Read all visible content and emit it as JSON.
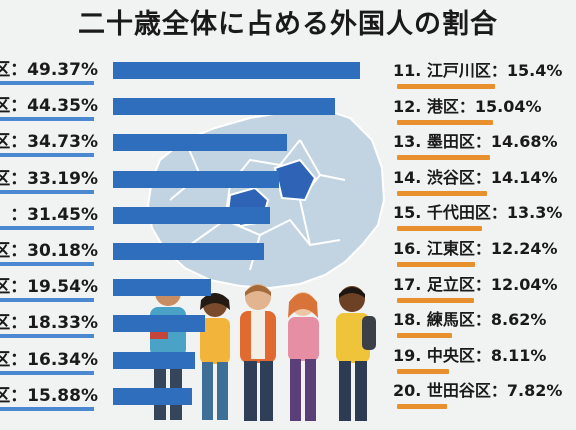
{
  "title": "二十歳全体に占める外国人の割合",
  "chart_data": {
    "type": "bar",
    "title": "二十歳全体に占める外国人の割合",
    "left_column": {
      "labels": [
        "区：49.37%",
        "区：44.35%",
        "区：34.73%",
        "区：33.19%",
        "：31.45%",
        "区：30.18%",
        "区：19.54%",
        "区：18.33%",
        "区：16.34%",
        "区：15.88%"
      ],
      "values": [
        49.37,
        44.35,
        34.73,
        33.19,
        31.45,
        30.18,
        19.54,
        18.33,
        16.34,
        15.88
      ]
    },
    "right_column": {
      "labels": [
        "11. 江戸川区：15.4%",
        "12. 港区：15.04%",
        "13. 墨田区：14.68%",
        "14. 渋谷区：14.14%",
        "15. 千代田区：13.3%",
        "16. 江東区：12.24%",
        "17. 足立区：12.04%",
        "18. 練馬区：8.62%",
        "19. 中央区：8.11%",
        "20. 世田谷区：7.82%"
      ],
      "values": [
        15.4,
        15.04,
        14.68,
        14.14,
        13.3,
        12.24,
        12.04,
        8.62,
        8.11,
        7.82
      ]
    },
    "colors": {
      "left_bar": "#2f6ebc",
      "right_bar": "#e8902e",
      "map": "#c2d4e1",
      "map_highlight": "#2e63b5"
    }
  }
}
